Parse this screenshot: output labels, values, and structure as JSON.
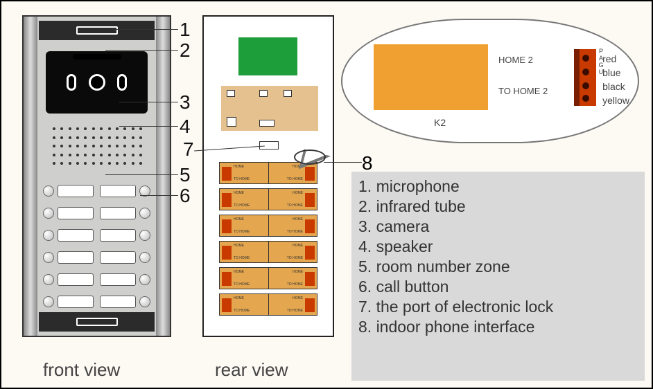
{
  "labels": {
    "front_view": "front view",
    "rear_view": "rear view"
  },
  "callouts": {
    "n1": "1",
    "n2": "2",
    "n3": "3",
    "n4": "4",
    "n5": "5",
    "n6": "6",
    "n7": "7",
    "n8": "8"
  },
  "legend": {
    "l1": "1. microphone",
    "l2": "2. infrared tube",
    "l3": "3. camera",
    "l4": "4. speaker",
    "l5": "5. room number zone",
    "l6": "6. call button",
    "l7": "7. the  port of electronic lock",
    "l8": "8. indoor phone interface"
  },
  "detail": {
    "home2": "HOME 2",
    "tohome2": "TO HOME 2",
    "k2": "K2",
    "side": "PAGU",
    "wire_red": "red",
    "wire_blue": "blue",
    "wire_black": "black",
    "wire_yellow": "yellow"
  },
  "style": {
    "frame_bg": "#fdfaf4",
    "panel_bg": "#cfcfce",
    "pcb_green": "#1e9e3a",
    "pcb_tan": "#e6c190",
    "board_orange": "#e4a64e",
    "connector_red": "#c93a00",
    "detail_orange": "#f0a030",
    "legend_bg": "#d9d9d9",
    "wire_red": "#c00",
    "wire_blue": "#06c",
    "wire_black": "#000",
    "wire_yellow": "#cc0"
  }
}
